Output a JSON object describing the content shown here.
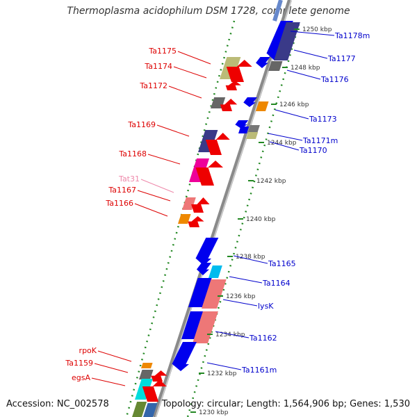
{
  "title": "Thermoplasma acidophilum DSM 1728, complete genome",
  "footer": {
    "accession": "Accession: NC_002578",
    "summary": "Topology: circular; Length: 1,564,906 bp; Genes: 1,530"
  },
  "colors": {
    "left_labels": "#dd0000",
    "right_labels": "#0000cc",
    "tRNA_label": "#ee88aa",
    "backbone": "#888888",
    "ticks": "#228822"
  },
  "ticks": [
    "1250 kbp",
    "1248 kbp",
    "1246 kbp",
    "1244 kbp",
    "1242 kbp",
    "1240 kbp",
    "1238 kbp",
    "1236 kbp",
    "1234 kbp",
    "1232 kbp",
    "1230 kbp"
  ],
  "left_labels": [
    "Ta1175",
    "Ta1174",
    "Ta1172",
    "Ta1169",
    "Ta1168",
    "Tat31",
    "Ta1167",
    "Ta1166",
    "rpoK",
    "Ta1159",
    "egsA"
  ],
  "right_labels": [
    "Ta1178m",
    "Ta1177",
    "Ta1176",
    "Ta1173",
    "Ta1171m",
    "Ta1170",
    "Ta1165",
    "Ta1164",
    "lysK",
    "Ta1162",
    "Ta1161m"
  ]
}
